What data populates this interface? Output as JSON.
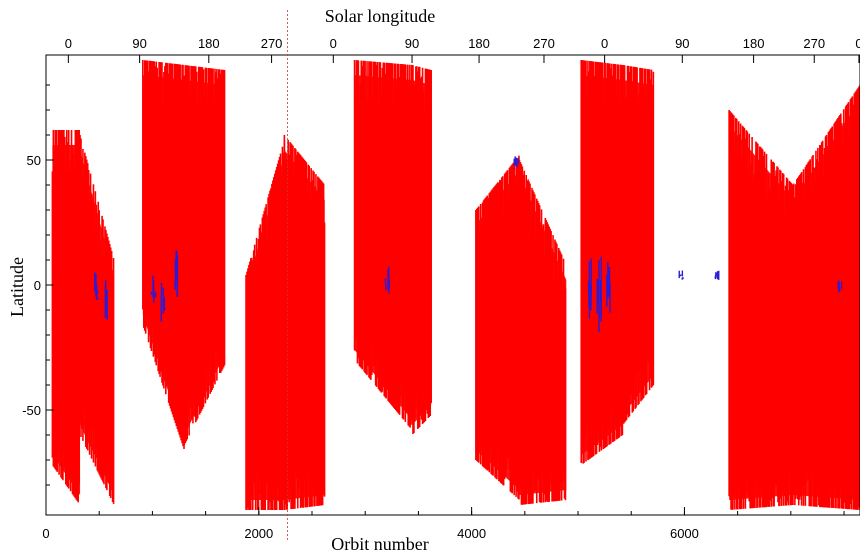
{
  "chart_data": {
    "type": "scatter",
    "xlabel": "Orbit number",
    "ylabel": "Latitude",
    "top_axis_label": "Solar longitude",
    "xlim": [
      0,
      7650
    ],
    "ylim": [
      -92,
      92
    ],
    "x_ticks": [
      0,
      2000,
      4000,
      6000
    ],
    "x_tick_labels": [
      "0",
      "2000",
      "4000",
      "6000"
    ],
    "y_ticks": [
      -50,
      0,
      50
    ],
    "y_tick_labels": [
      "-50",
      "0",
      "50"
    ],
    "top_ticks": [
      {
        "orbit": 210,
        "label": "0"
      },
      {
        "orbit": 880,
        "label": "90"
      },
      {
        "orbit": 1530,
        "label": "180"
      },
      {
        "orbit": 2120,
        "label": "270"
      },
      {
        "orbit": 2700,
        "label": "0"
      },
      {
        "orbit": 3440,
        "label": "90"
      },
      {
        "orbit": 4070,
        "label": "180"
      },
      {
        "orbit": 4680,
        "label": "270"
      },
      {
        "orbit": 5250,
        "label": "0"
      },
      {
        "orbit": 5980,
        "label": "90"
      },
      {
        "orbit": 6650,
        "label": "180"
      },
      {
        "orbit": 7220,
        "label": "270"
      },
      {
        "orbit": 7640,
        "label": "0"
      }
    ],
    "grid": false,
    "colors": {
      "primary": "#ff0000",
      "secondary": "#2b1bd6",
      "marker": "#cc3333"
    },
    "series": [
      {
        "color": "#ff0000",
        "coverage_bands": [
          {
            "orbit_start": 60,
            "orbit_end": 320,
            "lat_top_start": 62,
            "lat_top_end": 62,
            "lat_bottom_start": -72,
            "lat_bottom_end": -88
          },
          {
            "orbit_start": 320,
            "orbit_end": 640,
            "lat_top_start": 60,
            "lat_top_end": 10,
            "lat_bottom_start": -60,
            "lat_bottom_end": -88
          },
          {
            "orbit_start": 910,
            "orbit_end": 1300,
            "lat_top_start": 90,
            "lat_top_end": 88,
            "lat_bottom_start": -16,
            "lat_bottom_end": -66
          },
          {
            "orbit_start": 1300,
            "orbit_end": 1680,
            "lat_top_start": 88,
            "lat_top_end": 86,
            "lat_bottom_start": -64,
            "lat_bottom_end": -32
          },
          {
            "orbit_start": 1880,
            "orbit_end": 2240,
            "lat_top_start": 4,
            "lat_top_end": 58,
            "lat_bottom_start": -90,
            "lat_bottom_end": -90
          },
          {
            "orbit_start": 2240,
            "orbit_end": 2620,
            "lat_top_start": 60,
            "lat_top_end": 40,
            "lat_bottom_start": -90,
            "lat_bottom_end": -88
          },
          {
            "orbit_start": 2900,
            "orbit_end": 3440,
            "lat_top_start": 90,
            "lat_top_end": 88,
            "lat_bottom_start": -30,
            "lat_bottom_end": -58
          },
          {
            "orbit_start": 3440,
            "orbit_end": 3620,
            "lat_top_start": 88,
            "lat_top_end": 86,
            "lat_bottom_start": -60,
            "lat_bottom_end": -52
          },
          {
            "orbit_start": 4040,
            "orbit_end": 4450,
            "lat_top_start": 30,
            "lat_top_end": 52,
            "lat_bottom_start": -70,
            "lat_bottom_end": -86
          },
          {
            "orbit_start": 4450,
            "orbit_end": 4890,
            "lat_top_start": 50,
            "lat_top_end": 8,
            "lat_bottom_start": -88,
            "lat_bottom_end": -86
          },
          {
            "orbit_start": 5030,
            "orbit_end": 5420,
            "lat_top_start": 90,
            "lat_top_end": 88,
            "lat_bottom_start": -72,
            "lat_bottom_end": -60
          },
          {
            "orbit_start": 5420,
            "orbit_end": 5710,
            "lat_top_start": 88,
            "lat_top_end": 86,
            "lat_bottom_start": -56,
            "lat_bottom_end": -40
          },
          {
            "orbit_start": 6420,
            "orbit_end": 7020,
            "lat_top_start": 70,
            "lat_top_end": 40,
            "lat_bottom_start": -90,
            "lat_bottom_end": -88
          },
          {
            "orbit_start": 7020,
            "orbit_end": 7650,
            "lat_top_start": 40,
            "lat_top_end": 80,
            "lat_bottom_start": -88,
            "lat_bottom_end": -90
          }
        ]
      },
      {
        "color": "#2b1bd6",
        "clusters": [
          {
            "orbit": 470,
            "lat_from": -10,
            "lat_to": 6
          },
          {
            "orbit": 560,
            "lat_from": -14,
            "lat_to": 8
          },
          {
            "orbit": 1010,
            "lat_from": -10,
            "lat_to": 4
          },
          {
            "orbit": 1100,
            "lat_from": -18,
            "lat_to": 2
          },
          {
            "orbit": 1230,
            "lat_from": -6,
            "lat_to": 18
          },
          {
            "orbit": 3210,
            "lat_from": -4,
            "lat_to": 8
          },
          {
            "orbit": 4420,
            "lat_from": 46,
            "lat_to": 52
          },
          {
            "orbit": 5110,
            "lat_from": -14,
            "lat_to": 14
          },
          {
            "orbit": 5200,
            "lat_from": -22,
            "lat_to": 12
          },
          {
            "orbit": 5290,
            "lat_from": -12,
            "lat_to": 10
          },
          {
            "orbit": 5970,
            "lat_from": 2,
            "lat_to": 6
          },
          {
            "orbit": 6310,
            "lat_from": 2,
            "lat_to": 6
          },
          {
            "orbit": 7460,
            "lat_from": -4,
            "lat_to": 2
          }
        ]
      }
    ]
  }
}
